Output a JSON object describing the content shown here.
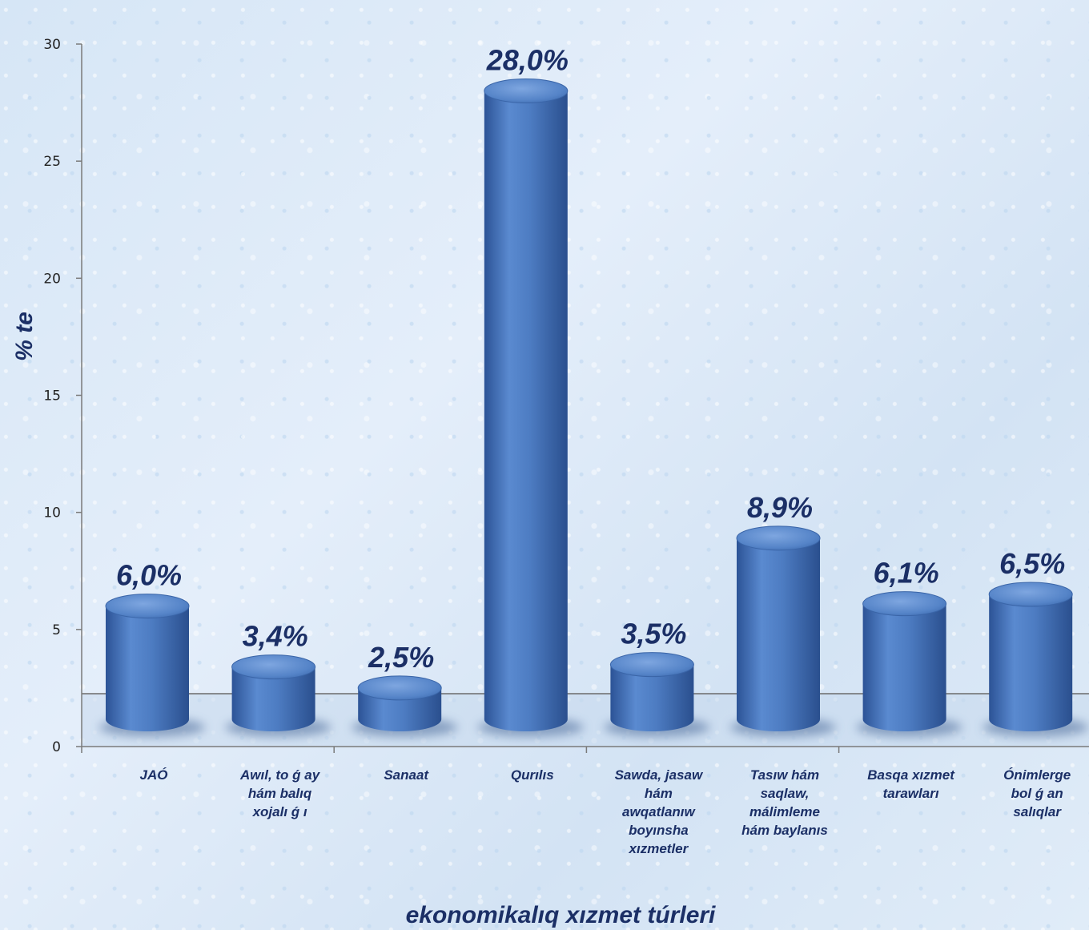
{
  "chart_data": {
    "type": "bar",
    "ylabel": "% te",
    "xlabel": "ekonomikalıq xızmet túrleri",
    "ylim": [
      0,
      30
    ],
    "yticks": [
      0,
      5,
      10,
      15,
      20,
      25,
      30
    ],
    "categories": [
      "JAÓ",
      "Awıl, to ǵ ay hám balıq xojalı ǵ ı",
      "Sanaat",
      "Qurılıs",
      "Sawda, jasaw hám awqatlanıw boyınsha xızmetler",
      "Tasıw hám saqlaw, málimleme hám baylanıs",
      "Basqa xızmet tarawları",
      "Ónimlerge bol ǵ an salıqlar"
    ],
    "category_lines": [
      [
        "JAÓ"
      ],
      [
        "Awıl, to ǵ ay",
        "hám balıq",
        "xojalı ǵ ı"
      ],
      [
        "Sanaat"
      ],
      [
        "Qurılıs"
      ],
      [
        "Sawda, jasaw",
        "hám",
        "awqatlanıw",
        "boyınsha",
        "xızmetler"
      ],
      [
        "Tasıw hám",
        "saqlaw,",
        "málimleme",
        "hám baylanıs"
      ],
      [
        "Basqa xızmet",
        "tarawları"
      ],
      [
        "Ónimlerge",
        "bol ǵ an",
        "salıqlar"
      ]
    ],
    "values": [
      6.0,
      3.4,
      2.5,
      28.0,
      3.5,
      8.9,
      6.1,
      6.5
    ],
    "data_labels": [
      "6,0%",
      "3,4%",
      "2,5%",
      "28,0%",
      "3,5%",
      "8,9%",
      "6,1%",
      "6,5%"
    ],
    "bar_color": "#4a78be",
    "grid": false,
    "legend": "none"
  }
}
